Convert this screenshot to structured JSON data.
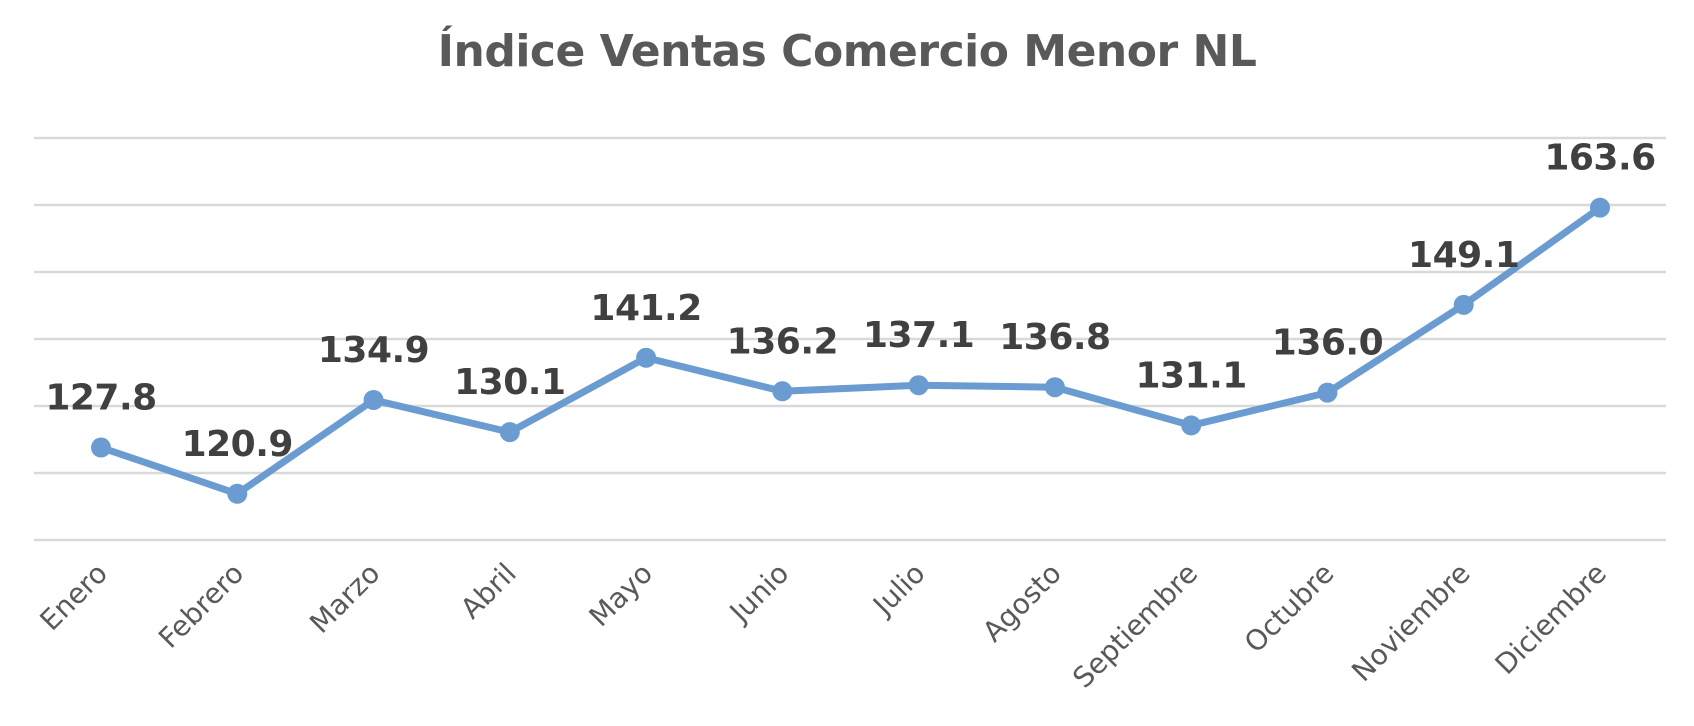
{
  "chart_data": {
    "type": "line",
    "title": "Índice Ventas Comercio Menor NL",
    "categories": [
      "Enero",
      "Febrero",
      "Marzo",
      "Abril",
      "Mayo",
      "Junio",
      "Julio",
      "Agosto",
      "Septiembre",
      "Octubre",
      "Noviembre",
      "Diciembre"
    ],
    "series": [
      {
        "values": [
          127.8,
          120.9,
          134.9,
          130.1,
          141.2,
          136.2,
          137.1,
          136.8,
          131.1,
          136.0,
          149.1,
          163.6
        ],
        "labels": [
          "127.8",
          "120.9",
          "134.9",
          "130.1",
          "141.2",
          "136.2",
          "137.1",
          "136.8",
          "131.1",
          "136.0",
          "149.1",
          "163.6"
        ],
        "color": "#6a9bd1"
      }
    ],
    "xlabel": "",
    "ylabel": "",
    "ylim": [
      114,
      174
    ],
    "y_gridlines": [
      114,
      124,
      134,
      144,
      154,
      164,
      174
    ],
    "y_tick_labels_visible": false,
    "grid": true,
    "legend": "none",
    "grid_color": "#d9d9d9"
  }
}
